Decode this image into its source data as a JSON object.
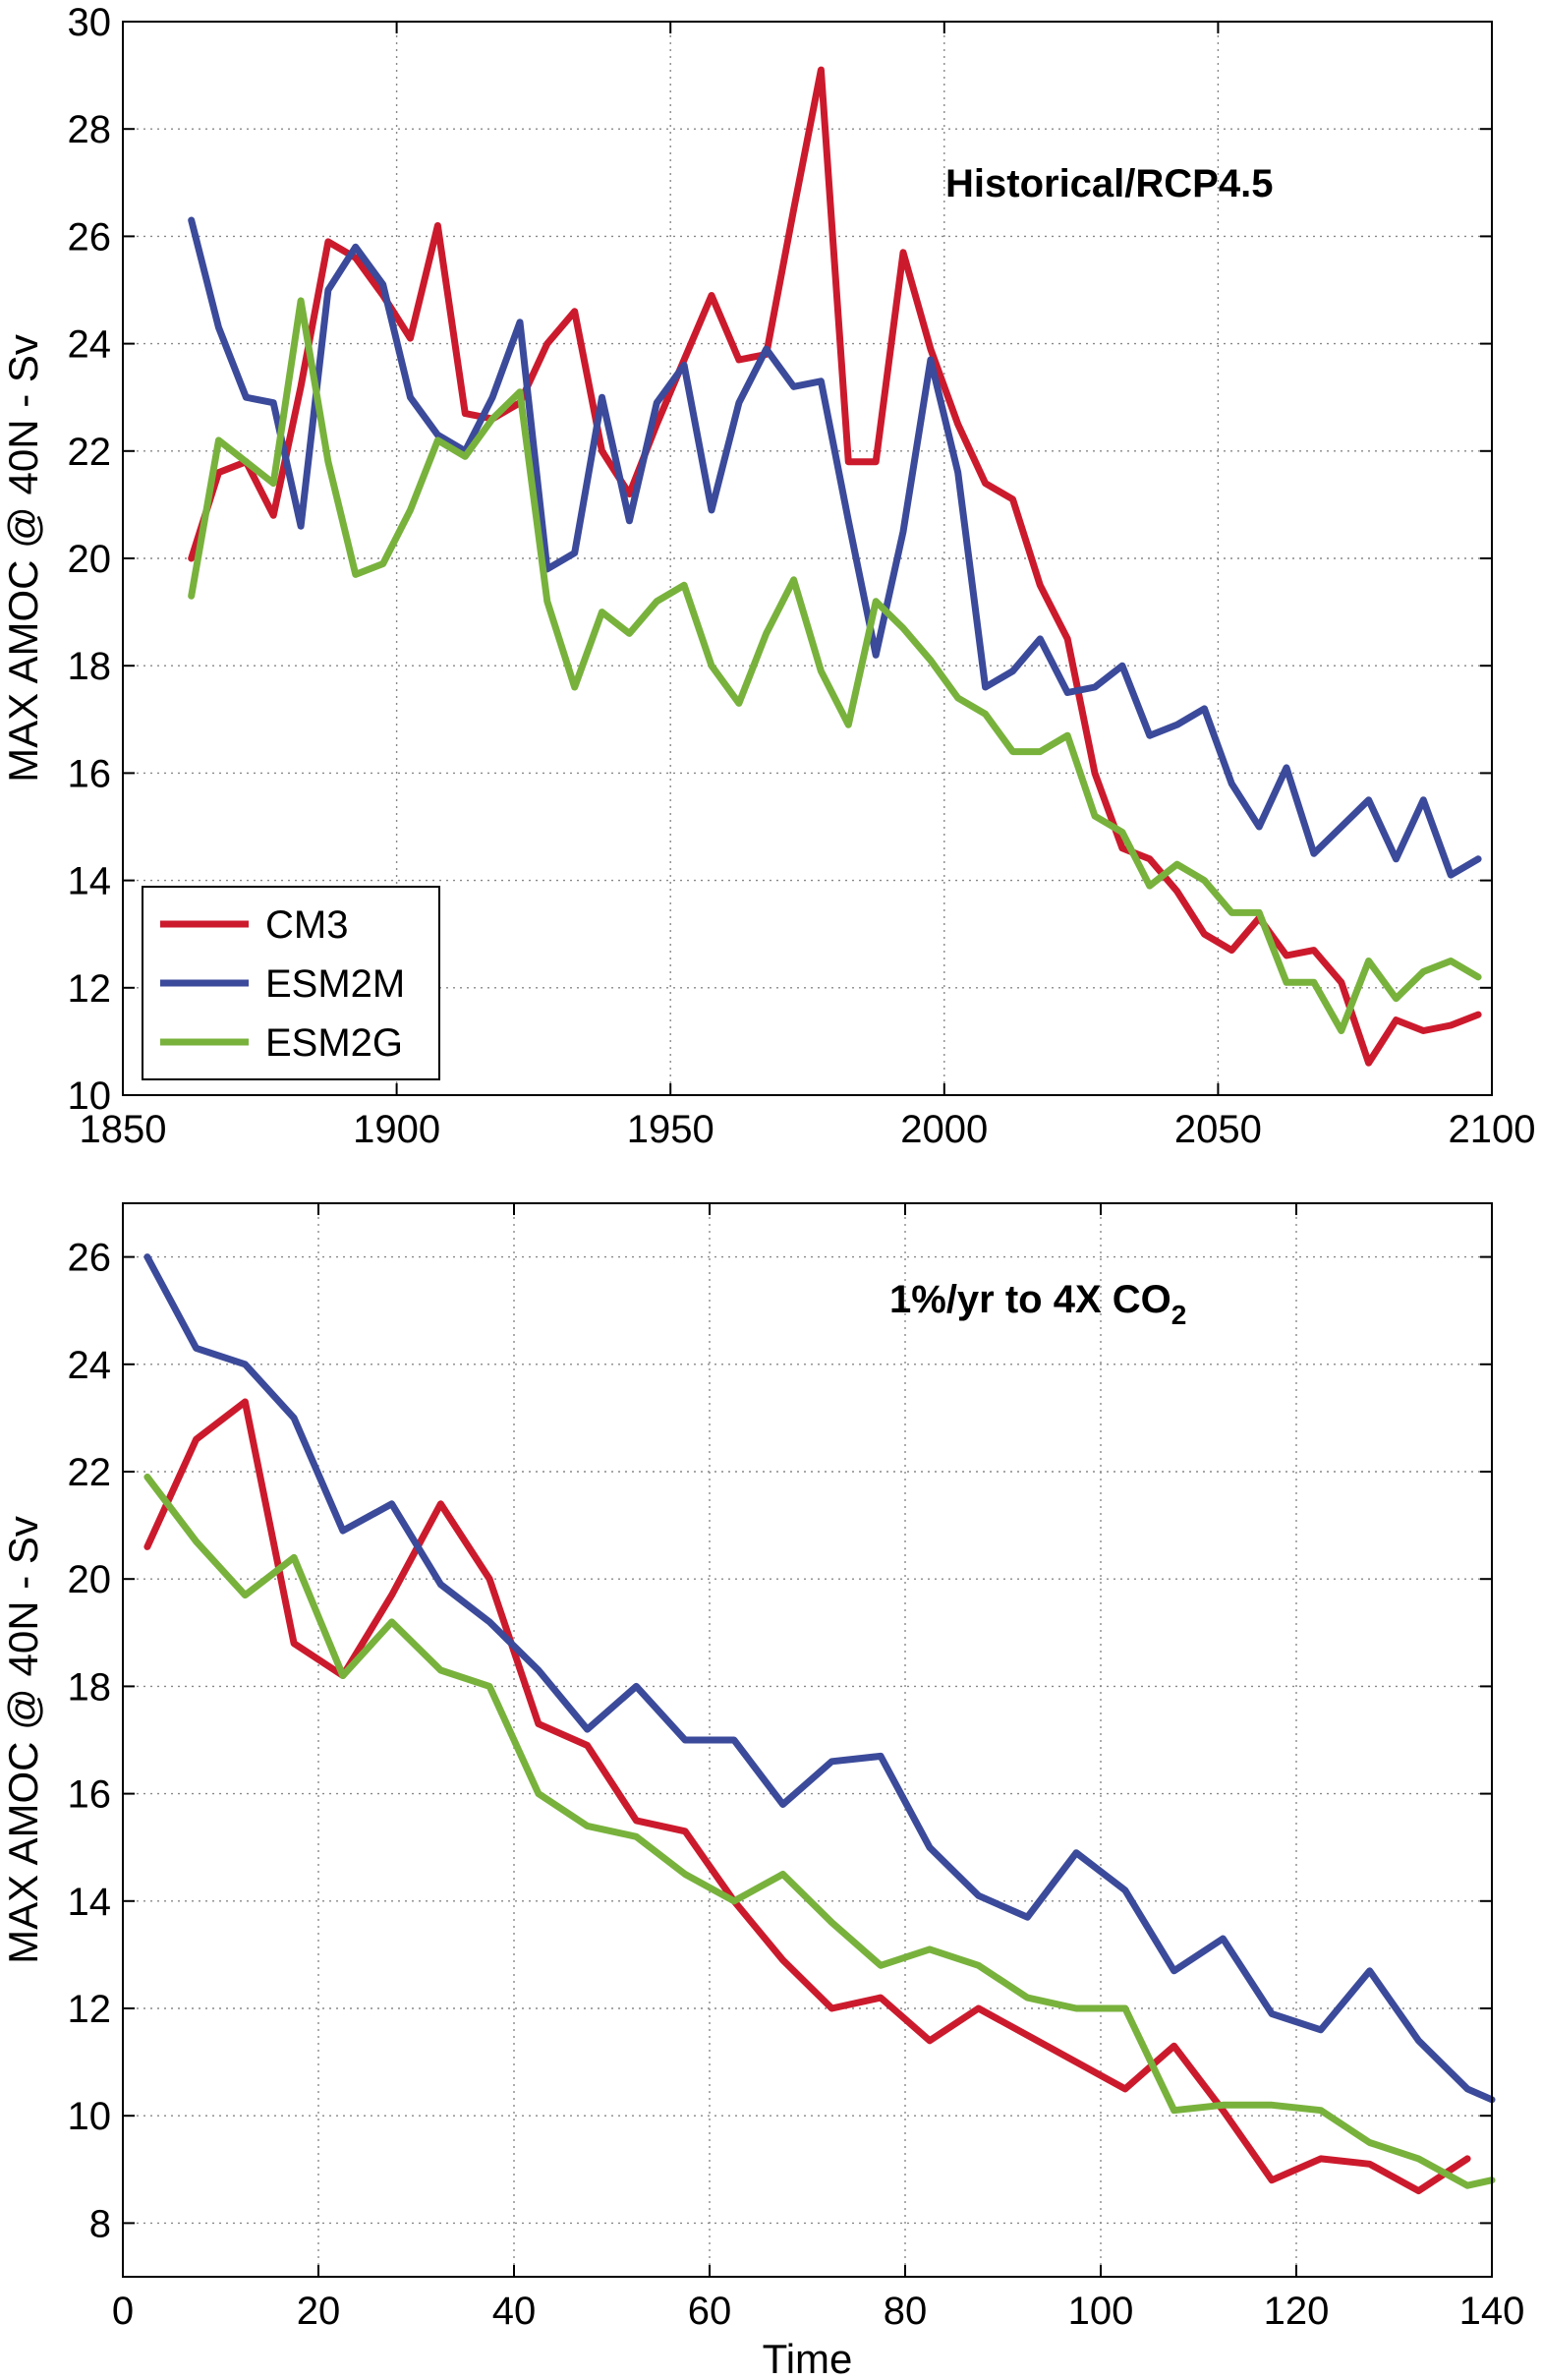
{
  "chart_data": [
    {
      "type": "line",
      "annotation": "Historical/RCP4.5",
      "xlabel": "",
      "ylabel": "MAX AMOC @ 40N - Sv",
      "xlim": [
        1850,
        2100
      ],
      "ylim": [
        10,
        30
      ],
      "xticks": [
        1850,
        1900,
        1950,
        2000,
        2050,
        2100
      ],
      "yticks": [
        10,
        12,
        14,
        16,
        18,
        20,
        22,
        24,
        26,
        28,
        30
      ],
      "grid": true,
      "legend": {
        "position": "bottom-left",
        "entries": [
          "CM3",
          "ESM2M",
          "ESM2G"
        ]
      },
      "series": [
        {
          "name": "CM3",
          "color": "#cc1a2d",
          "x": [
            1862.5,
            1867.5,
            1872.5,
            1877.5,
            1882.5,
            1887.5,
            1892.5,
            1897.5,
            1902.5,
            1907.5,
            1912.5,
            1917.5,
            1922.5,
            1927.5,
            1932.5,
            1937.5,
            1942.5,
            1947.5,
            1952.5,
            1957.5,
            1962.5,
            1967.5,
            1972.5,
            1977.5,
            1982.5,
            1987.5,
            1992.5,
            1997.5,
            2002.5,
            2007.5,
            2012.5,
            2017.5,
            2022.5,
            2027.5,
            2032.5,
            2037.5,
            2042.5,
            2047.5,
            2052.5,
            2057.5,
            2062.5,
            2067.5,
            2072.5,
            2077.5,
            2082.5,
            2087.5,
            2092.5,
            2097.5
          ],
          "y": [
            20.0,
            21.6,
            21.8,
            20.8,
            23.2,
            25.9,
            25.6,
            24.9,
            24.1,
            26.2,
            22.7,
            22.6,
            22.9,
            24.0,
            24.6,
            22.0,
            21.2,
            22.5,
            23.7,
            24.9,
            23.7,
            23.8,
            26.5,
            29.1,
            21.8,
            21.8,
            25.7,
            23.9,
            22.5,
            21.4,
            21.1,
            19.5,
            18.5,
            16.0,
            14.6,
            14.4,
            13.8,
            13.0,
            12.7,
            13.3,
            12.6,
            12.7,
            12.1,
            10.6,
            11.4,
            11.2,
            11.3,
            11.5
          ]
        },
        {
          "name": "ESM2M",
          "color": "#3b4a9a",
          "x": [
            1862.5,
            1867.5,
            1872.5,
            1877.5,
            1882.5,
            1887.5,
            1892.5,
            1897.5,
            1902.5,
            1907.5,
            1912.5,
            1917.5,
            1922.5,
            1927.5,
            1932.5,
            1937.5,
            1942.5,
            1947.5,
            1952.5,
            1957.5,
            1962.5,
            1967.5,
            1972.5,
            1977.5,
            1982.5,
            1987.5,
            1992.5,
            1997.5,
            2002.5,
            2007.5,
            2012.5,
            2017.5,
            2022.5,
            2027.5,
            2032.5,
            2037.5,
            2042.5,
            2047.5,
            2052.5,
            2057.5,
            2062.5,
            2067.5,
            2072.5,
            2077.5,
            2082.5,
            2087.5,
            2092.5,
            2097.5
          ],
          "y": [
            26.3,
            24.3,
            23.0,
            22.9,
            20.6,
            25.0,
            25.8,
            25.1,
            23.0,
            22.3,
            22.0,
            23.0,
            24.4,
            19.8,
            20.1,
            23.0,
            20.7,
            22.9,
            23.6,
            20.9,
            22.9,
            23.9,
            23.2,
            23.3,
            20.7,
            18.2,
            20.5,
            23.7,
            21.6,
            17.6,
            17.9,
            18.5,
            17.5,
            17.6,
            18.0,
            16.7,
            16.9,
            17.2,
            15.8,
            15.0,
            16.1,
            14.5,
            15.0,
            15.5,
            14.4,
            15.5,
            14.1,
            14.4
          ]
        },
        {
          "name": "ESM2G",
          "color": "#78b23c",
          "x": [
            1862.5,
            1867.5,
            1872.5,
            1877.5,
            1882.5,
            1887.5,
            1892.5,
            1897.5,
            1902.5,
            1907.5,
            1912.5,
            1917.5,
            1922.5,
            1927.5,
            1932.5,
            1937.5,
            1942.5,
            1947.5,
            1952.5,
            1957.5,
            1962.5,
            1967.5,
            1972.5,
            1977.5,
            1982.5,
            1987.5,
            1992.5,
            1997.5,
            2002.5,
            2007.5,
            2012.5,
            2017.5,
            2022.5,
            2027.5,
            2032.5,
            2037.5,
            2042.5,
            2047.5,
            2052.5,
            2057.5,
            2062.5,
            2067.5,
            2072.5,
            2077.5,
            2082.5,
            2087.5,
            2092.5,
            2097.5
          ],
          "y": [
            19.3,
            22.2,
            21.8,
            21.4,
            24.8,
            21.8,
            19.7,
            19.9,
            20.9,
            22.2,
            21.9,
            22.6,
            23.1,
            19.2,
            17.6,
            19.0,
            18.6,
            19.2,
            19.5,
            18.0,
            17.3,
            18.6,
            19.6,
            17.9,
            16.9,
            19.2,
            18.7,
            18.1,
            17.4,
            17.1,
            16.4,
            16.4,
            16.7,
            15.2,
            14.9,
            13.9,
            14.3,
            14.0,
            13.4,
            13.4,
            12.1,
            12.1,
            11.2,
            12.5,
            11.8,
            12.3,
            12.5,
            12.2
          ]
        }
      ]
    },
    {
      "type": "line",
      "annotation": "1%/yr to 4X CO",
      "annotation_subscript": "2",
      "xlabel": "Time",
      "ylabel": "MAX AMOC @ 40N - Sv",
      "xlim": [
        0,
        140
      ],
      "ylim": [
        7,
        27
      ],
      "xticks": [
        0,
        20,
        40,
        60,
        80,
        100,
        120,
        140
      ],
      "yticks": [
        8,
        10,
        12,
        14,
        16,
        18,
        20,
        22,
        24,
        26
      ],
      "grid": true,
      "series": [
        {
          "name": "CM3",
          "color": "#cc1a2d",
          "x": [
            2.5,
            7.5,
            12.5,
            17.5,
            22.5,
            27.5,
            32.5,
            37.5,
            42.5,
            47.5,
            52.5,
            57.5,
            62.5,
            67.5,
            72.5,
            77.5,
            82.5,
            87.5,
            92.5,
            97.5,
            102.5,
            107.5,
            112.5,
            117.5,
            122.5,
            127.5,
            132.5,
            137.5
          ],
          "y": [
            20.6,
            22.6,
            23.3,
            18.8,
            18.2,
            19.7,
            21.4,
            20.0,
            17.3,
            16.9,
            15.5,
            15.3,
            14.0,
            12.9,
            12.0,
            12.2,
            11.4,
            12.0,
            11.5,
            11.0,
            10.5,
            11.3,
            10.1,
            8.8,
            9.2,
            9.1,
            8.6,
            9.2
          ]
        },
        {
          "name": "ESM2M",
          "color": "#3b4a9a",
          "x": [
            2.5,
            7.5,
            12.5,
            17.5,
            22.5,
            27.5,
            32.5,
            37.5,
            42.5,
            47.5,
            52.5,
            57.5,
            62.5,
            67.5,
            72.5,
            77.5,
            82.5,
            87.5,
            92.5,
            97.5,
            102.5,
            107.5,
            112.5,
            117.5,
            122.5,
            127.5,
            132.5,
            137.5,
            140
          ],
          "y": [
            26.0,
            24.3,
            24.0,
            23.0,
            20.9,
            21.4,
            19.9,
            19.2,
            18.3,
            17.2,
            18.0,
            17.0,
            17.0,
            15.8,
            16.6,
            16.7,
            15.0,
            14.1,
            13.7,
            14.9,
            14.2,
            12.7,
            13.3,
            11.9,
            11.6,
            12.7,
            11.4,
            10.5,
            10.3
          ]
        },
        {
          "name": "ESM2G",
          "color": "#78b23c",
          "x": [
            2.5,
            7.5,
            12.5,
            17.5,
            22.5,
            27.5,
            32.5,
            37.5,
            42.5,
            47.5,
            52.5,
            57.5,
            62.5,
            67.5,
            72.5,
            77.5,
            82.5,
            87.5,
            92.5,
            97.5,
            102.5,
            107.5,
            112.5,
            117.5,
            122.5,
            127.5,
            132.5,
            137.5,
            140
          ],
          "y": [
            21.9,
            20.7,
            19.7,
            20.4,
            18.2,
            19.2,
            18.3,
            18.0,
            16.0,
            15.4,
            15.2,
            14.5,
            14.0,
            14.5,
            13.6,
            12.8,
            13.1,
            12.8,
            12.2,
            12.0,
            12.0,
            10.1,
            10.2,
            10.2,
            10.1,
            9.5,
            9.2,
            8.7,
            8.8
          ]
        }
      ]
    }
  ]
}
